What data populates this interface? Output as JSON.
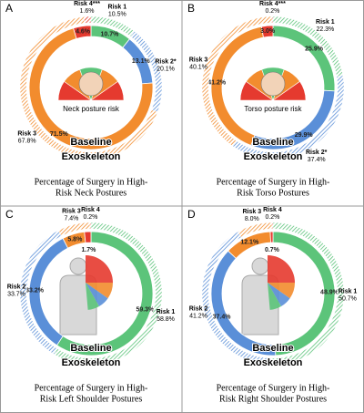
{
  "chart_data": [
    {
      "type": "donut",
      "panel": "A",
      "caption": [
        "Percentage of Surgery in High-",
        "Risk Neck Postures"
      ],
      "inset_label": "Neck posture risk",
      "categories": [
        "Risk 1",
        "Risk 2*",
        "Risk 3",
        "Risk 4***"
      ],
      "colors": [
        "#5cc47a",
        "#5a8fd8",
        "#f28c2e",
        "#e53a2f"
      ],
      "series": [
        {
          "name": "Baseline",
          "values": [
            10.7,
            13.1,
            71.5,
            4.6
          ],
          "value_labels": [
            "10.7%",
            "13.1%",
            "71.5%",
            "4.6%"
          ]
        },
        {
          "name": "Exoskeleton",
          "values": [
            10.5,
            20.1,
            67.8,
            1.6
          ],
          "value_labels": [
            "10.5%",
            "20.1%",
            "67.8%",
            "1.6%"
          ]
        }
      ]
    },
    {
      "type": "donut",
      "panel": "B",
      "caption": [
        "Percentage of Surgery in High-",
        "Risk Torso Postures"
      ],
      "inset_label": "Torso posture risk",
      "categories": [
        "Risk 1",
        "Risk 2*",
        "Risk 3",
        "Risk 4***"
      ],
      "colors": [
        "#5cc47a",
        "#5a8fd8",
        "#f28c2e",
        "#e53a2f"
      ],
      "series": [
        {
          "name": "Baseline",
          "values": [
            25.9,
            29.9,
            41.2,
            3.0
          ],
          "value_labels": [
            "25.9%",
            "29.9%",
            "41.2%",
            "3.0%"
          ]
        },
        {
          "name": "Exoskeleton",
          "values": [
            22.3,
            37.4,
            40.1,
            0.2
          ],
          "value_labels": [
            "22.3%",
            "37.4%",
            "40.1%",
            "0.2%"
          ]
        }
      ]
    },
    {
      "type": "donut",
      "panel": "C",
      "caption": [
        "Percentage of Surgery in High-",
        "Risk Left Shoulder Postures"
      ],
      "categories": [
        "Risk 1",
        "Risk 2",
        "Risk 3",
        "Risk 4"
      ],
      "colors": [
        "#5cc47a",
        "#5a8fd8",
        "#f28c2e",
        "#e53a2f"
      ],
      "series": [
        {
          "name": "Baseline",
          "values": [
            59.3,
            33.2,
            5.8,
            1.7
          ],
          "value_labels": [
            "59.3%",
            "33.2%",
            "5.8%",
            "1.7%"
          ]
        },
        {
          "name": "Exoskeleton",
          "values": [
            58.8,
            33.7,
            7.4,
            0.2
          ],
          "value_labels": [
            "58.8%",
            "33.7%",
            "7.4%",
            "0.2%"
          ]
        }
      ]
    },
    {
      "type": "donut",
      "panel": "D",
      "caption": [
        "Percentage of Surgery in High-",
        "Risk Right Shoulder Postures"
      ],
      "categories": [
        "Risk 1",
        "Risk 2",
        "Risk 3",
        "Risk 4"
      ],
      "colors": [
        "#5cc47a",
        "#5a8fd8",
        "#f28c2e",
        "#e53a2f"
      ],
      "series": [
        {
          "name": "Baseline",
          "values": [
            48.9,
            37.4,
            12.1,
            0.7
          ],
          "value_labels": [
            "48.9%",
            "37.4%",
            "12.1%",
            "0.7%"
          ]
        },
        {
          "name": "Exoskeleton",
          "values": [
            50.7,
            41.2,
            8.0,
            0.2
          ],
          "value_labels": [
            "50.7%",
            "41.2%",
            "8.0%",
            "0.2%"
          ]
        }
      ]
    }
  ]
}
